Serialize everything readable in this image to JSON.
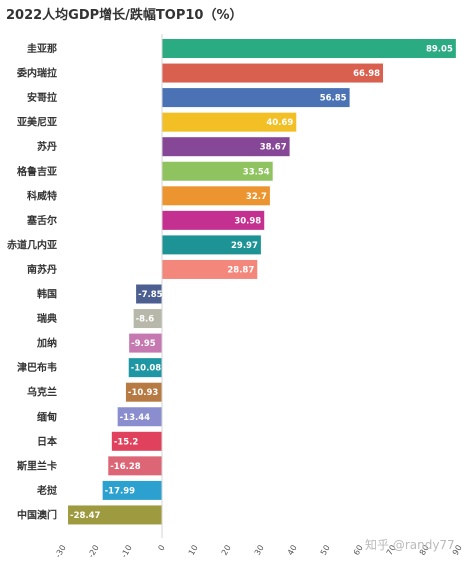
{
  "chart_data": {
    "type": "bar",
    "orientation": "horizontal",
    "title": "2022人均GDP增长/跌幅TOP10（%）",
    "categories": [
      "圭亚那",
      "委内瑞拉",
      "安哥拉",
      "亚美尼亚",
      "苏丹",
      "格鲁吉亚",
      "科威特",
      "塞舌尔",
      "赤道几内亚",
      "南苏丹",
      "韩国",
      "瑞典",
      "加纳",
      "津巴布韦",
      "乌克兰",
      "缅甸",
      "日本",
      "斯里兰卡",
      "老挝",
      "中国澳门"
    ],
    "values": [
      89.05,
      66.98,
      56.85,
      40.69,
      38.67,
      33.54,
      32.7,
      30.98,
      29.97,
      28.87,
      -7.85,
      -8.6,
      -9.95,
      -10.08,
      -10.93,
      -13.44,
      -15.2,
      -16.28,
      -17.99,
      -28.47
    ],
    "value_labels": [
      "89.05",
      "66.98",
      "56.85",
      "40.69",
      "38.67",
      "33.54",
      "32.7",
      "30.98",
      "29.97",
      "28.87",
      "-7.85",
      "-8.6",
      "-9.95",
      "-10.08",
      "-10.93",
      "-13.44",
      "-15.2",
      "-16.28",
      "-17.99",
      "-28.47"
    ],
    "colors": [
      "#2bab82",
      "#d9604f",
      "#4a72b5",
      "#f2c025",
      "#864896",
      "#8fc35f",
      "#ec9530",
      "#c4308f",
      "#1e9396",
      "#f3877c",
      "#4d5f91",
      "#b7b7aa",
      "#c678b1",
      "#1e96a3",
      "#b77a42",
      "#8a8ecf",
      "#e0425e",
      "#dc6676",
      "#2ca1cf",
      "#9e9a3f"
    ],
    "xlim": [
      -30,
      90
    ],
    "x_ticks": [
      "-30",
      "-20",
      "-10",
      "0",
      "10",
      "20",
      "30",
      "40",
      "50",
      "60",
      "70",
      "80",
      "90"
    ],
    "grid": false,
    "xlabel": "",
    "ylabel": ""
  },
  "watermark": "知乎 @randy77"
}
